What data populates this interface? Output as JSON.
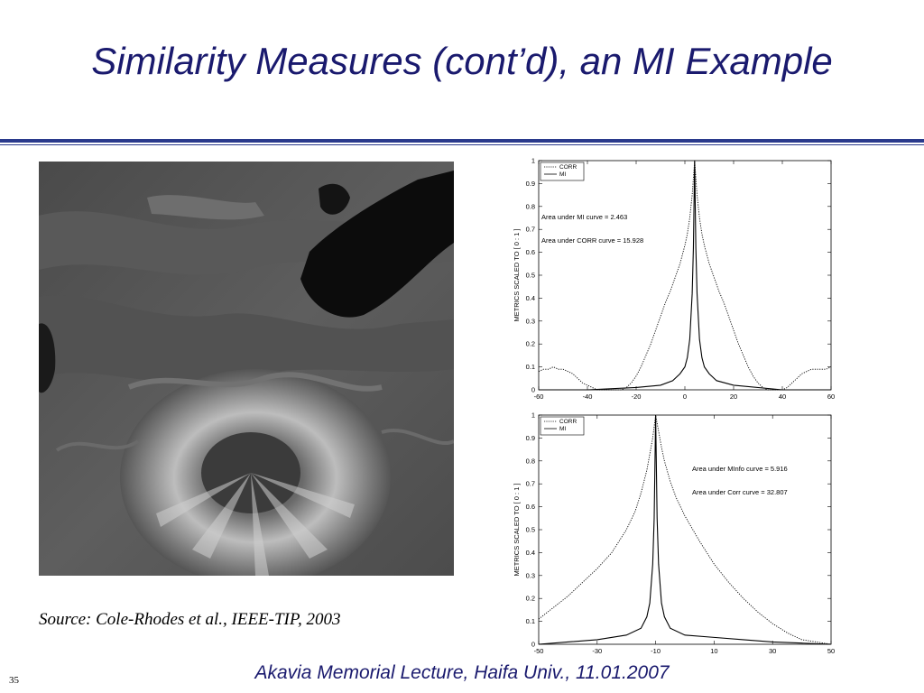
{
  "slide": {
    "title": "Similarity Measures (cont’d), an MI Example",
    "source": "Source: Cole-Rhodes et al., IEEE-TIP, 2003",
    "footer": "Akavia Memorial Lecture, Haifa Univ., 11.01.2007",
    "page_number": "35"
  },
  "colors": {
    "title": "#1a1a6e",
    "rule": "#2a3a8c",
    "curve": "#000000"
  },
  "chart_data": [
    {
      "type": "line",
      "ylabel": "METRICS  SCALED  TO  [ 0 : 1 ]",
      "xlim": [
        -60,
        60
      ],
      "ylim": [
        0,
        1
      ],
      "xticks": [
        -60,
        -40,
        -20,
        0,
        20,
        40,
        60
      ],
      "yticks": [
        0,
        0.1,
        0.2,
        0.3,
        0.4,
        0.5,
        0.6,
        0.7,
        0.8,
        0.9,
        1
      ],
      "legend": {
        "position": "top-left",
        "entries": [
          "CORR",
          "MI"
        ]
      },
      "annotations": [
        "Area under MI curve =  2.463",
        "Area under CORR curve = 15.928"
      ],
      "series": [
        {
          "name": "CORR",
          "style": "dotted",
          "x": [
            -60,
            -58,
            -56,
            -54,
            -52,
            -50,
            -48,
            -46,
            -44,
            -42,
            -40,
            -38,
            -36,
            -34,
            -32,
            -30,
            -28,
            -26,
            -24,
            -22,
            -20,
            -18,
            -16,
            -14,
            -12,
            -10,
            -8,
            -6,
            -4,
            -2,
            0,
            1,
            2,
            3,
            4,
            5,
            6,
            7,
            8,
            10,
            12,
            14,
            16,
            18,
            20,
            22,
            24,
            26,
            28,
            30,
            32,
            34,
            36,
            38,
            40,
            42,
            44,
            46,
            48,
            50,
            52,
            54,
            56,
            58,
            60
          ],
          "y": [
            0.08,
            0.09,
            0.09,
            0.1,
            0.09,
            0.09,
            0.08,
            0.07,
            0.05,
            0.03,
            0.02,
            0.01,
            0.0,
            0.0,
            0.0,
            0.0,
            0.0,
            0.0,
            0.01,
            0.03,
            0.06,
            0.1,
            0.15,
            0.2,
            0.26,
            0.32,
            0.38,
            0.43,
            0.49,
            0.55,
            0.63,
            0.68,
            0.75,
            0.85,
            1.0,
            0.85,
            0.75,
            0.68,
            0.63,
            0.55,
            0.49,
            0.43,
            0.38,
            0.32,
            0.26,
            0.2,
            0.15,
            0.1,
            0.06,
            0.03,
            0.01,
            0.0,
            0.0,
            0.0,
            0.0,
            0.01,
            0.03,
            0.05,
            0.07,
            0.08,
            0.09,
            0.09,
            0.09,
            0.09,
            0.1
          ]
        },
        {
          "name": "MI",
          "style": "solid",
          "x": [
            -60,
            -40,
            -20,
            -10,
            -5,
            -2,
            0,
            1,
            2,
            3,
            3.5,
            4,
            4.5,
            5,
            6,
            7,
            8,
            10,
            13,
            20,
            40,
            60
          ],
          "y": [
            0.0,
            0.0,
            0.01,
            0.02,
            0.04,
            0.07,
            0.1,
            0.14,
            0.22,
            0.42,
            0.62,
            1.0,
            0.62,
            0.42,
            0.22,
            0.14,
            0.1,
            0.07,
            0.04,
            0.02,
            0.0,
            0.0
          ]
        }
      ]
    },
    {
      "type": "line",
      "ylabel": "METRICS  SCALED  TO  [ 0 : 1 ]",
      "xlim": [
        -50,
        50
      ],
      "ylim": [
        0,
        1
      ],
      "xticks": [
        -50,
        -30,
        -10,
        10,
        30,
        50
      ],
      "yticks": [
        0,
        0.1,
        0.2,
        0.3,
        0.4,
        0.5,
        0.6,
        0.7,
        0.8,
        0.9,
        1
      ],
      "legend": {
        "position": "top-left",
        "entries": [
          "CORR",
          "MI"
        ]
      },
      "annotations": [
        "Area under MInfo curve =  5.916",
        "Area under Corr curve = 32.807"
      ],
      "series": [
        {
          "name": "CORR",
          "style": "dotted",
          "x": [
            -50,
            -45,
            -40,
            -35,
            -30,
            -25,
            -20,
            -17,
            -15,
            -13,
            -12,
            -11,
            -10,
            -9,
            -8,
            -7,
            -5,
            -3,
            0,
            5,
            10,
            15,
            20,
            25,
            30,
            35,
            40,
            45,
            50
          ],
          "y": [
            0.11,
            0.16,
            0.21,
            0.27,
            0.33,
            0.4,
            0.5,
            0.58,
            0.66,
            0.76,
            0.83,
            0.9,
            1.0,
            0.93,
            0.86,
            0.8,
            0.71,
            0.64,
            0.56,
            0.45,
            0.35,
            0.27,
            0.2,
            0.14,
            0.09,
            0.05,
            0.02,
            0.01,
            0.0
          ]
        },
        {
          "name": "MI",
          "style": "solid",
          "x": [
            -50,
            -40,
            -30,
            -20,
            -15,
            -13,
            -12,
            -11,
            -10.5,
            -10,
            -9.5,
            -9,
            -8,
            -7,
            -5,
            0,
            10,
            20,
            30,
            40,
            50
          ],
          "y": [
            0.0,
            0.01,
            0.02,
            0.04,
            0.07,
            0.12,
            0.18,
            0.35,
            0.55,
            1.0,
            0.55,
            0.35,
            0.18,
            0.12,
            0.07,
            0.04,
            0.03,
            0.02,
            0.01,
            0.005,
            0.0
          ]
        }
      ]
    }
  ]
}
